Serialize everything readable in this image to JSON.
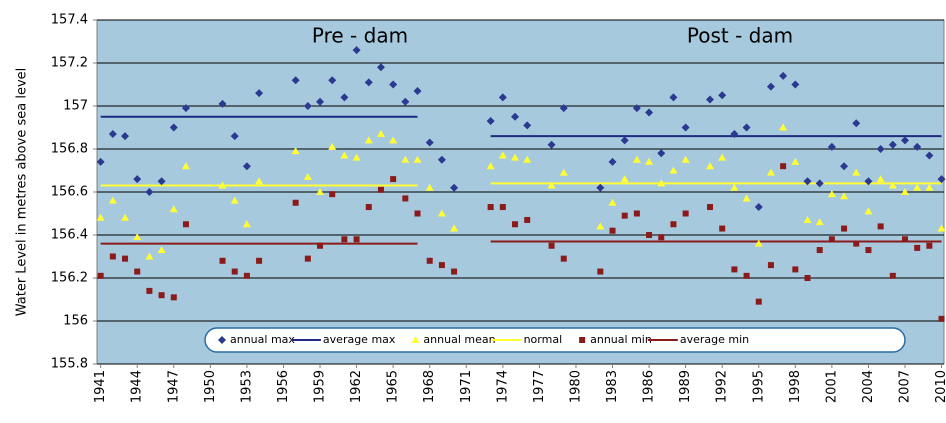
{
  "chart_data": {
    "type": "scatter",
    "y_label": "Water Level in metres above sea level",
    "annotations": [
      "Pre - dam",
      "Post - dam"
    ],
    "xlim": [
      1940.7,
      2010.2
    ],
    "xticks": [
      1941,
      1944,
      1947,
      1950,
      1953,
      1956,
      1959,
      1962,
      1965,
      1968,
      1971,
      1974,
      1977,
      1980,
      1983,
      1986,
      1989,
      1992,
      1995,
      1998,
      2001,
      2004,
      2007,
      2010
    ],
    "ylim": [
      155.8,
      157.4
    ],
    "yticks": [
      155.8,
      156,
      156.2,
      156.4,
      156.6,
      156.8,
      157,
      157.2,
      157.4
    ],
    "grid": true,
    "x": [
      1941,
      1942,
      1943,
      1944,
      1945,
      1946,
      1947,
      1948,
      1951,
      1952,
      1953,
      1954,
      1957,
      1958,
      1959,
      1960,
      1961,
      1962,
      1963,
      1964,
      1965,
      1966,
      1967,
      1968,
      1969,
      1970,
      1973,
      1974,
      1975,
      1976,
      1978,
      1979,
      1982,
      1983,
      1984,
      1985,
      1986,
      1987,
      1988,
      1989,
      1991,
      1992,
      1993,
      1994,
      1995,
      1996,
      1997,
      1998,
      1999,
      2000,
      2001,
      2002,
      2003,
      2004,
      2005,
      2006,
      2007,
      2008,
      2009,
      2010
    ],
    "series": [
      {
        "name": "annual max",
        "color": "#2b3990",
        "marker": "diamond",
        "values": [
          156.74,
          156.87,
          156.86,
          156.66,
          156.6,
          156.65,
          156.9,
          156.99,
          157.01,
          156.86,
          156.72,
          157.06,
          157.12,
          157.0,
          157.02,
          157.12,
          157.04,
          157.26,
          157.11,
          157.18,
          157.1,
          157.02,
          157.07,
          156.83,
          156.75,
          156.62,
          156.93,
          157.04,
          156.95,
          156.91,
          156.82,
          156.99,
          156.62,
          156.74,
          156.84,
          156.99,
          156.97,
          156.78,
          157.04,
          156.9,
          157.03,
          157.05,
          156.87,
          156.9,
          156.53,
          157.09,
          157.14,
          157.1,
          156.65,
          156.64,
          156.81,
          156.72,
          156.92,
          156.65,
          156.8,
          156.82,
          156.84,
          156.81,
          156.77,
          156.66
        ]
      },
      {
        "name": "average max",
        "color": "#1f2a80",
        "segments": [
          {
            "x": [
              1941,
              1967
            ],
            "value": 156.95
          },
          {
            "x": [
              1973,
              2010
            ],
            "value": 156.86
          }
        ]
      },
      {
        "name": "annual mean",
        "color": "#ffff33",
        "marker": "triangle",
        "values": [
          156.48,
          156.56,
          156.48,
          156.39,
          156.3,
          156.33,
          156.52,
          156.72,
          156.63,
          156.56,
          156.45,
          156.65,
          156.79,
          156.67,
          156.6,
          156.81,
          156.77,
          156.76,
          156.84,
          156.87,
          156.84,
          156.75,
          156.75,
          156.62,
          156.5,
          156.43,
          156.72,
          156.77,
          156.76,
          156.75,
          156.63,
          156.69,
          156.44,
          156.55,
          156.66,
          156.75,
          156.74,
          156.64,
          156.7,
          156.75,
          156.72,
          156.76,
          156.62,
          156.57,
          156.36,
          156.69,
          156.9,
          156.74,
          156.47,
          156.46,
          156.59,
          156.58,
          156.69,
          156.51,
          156.66,
          156.63,
          156.6,
          156.62,
          156.62,
          156.43
        ]
      },
      {
        "name": "normal",
        "color": "#ffff33",
        "segments": [
          {
            "x": [
              1941,
              1967
            ],
            "value": 156.63
          },
          {
            "x": [
              1973,
              2010
            ],
            "value": 156.64
          }
        ]
      },
      {
        "name": "annual min",
        "color": "#8b1a1a",
        "marker": "square",
        "values": [
          156.21,
          156.3,
          156.29,
          156.23,
          156.14,
          156.12,
          156.11,
          156.45,
          156.28,
          156.23,
          156.21,
          156.28,
          156.55,
          156.29,
          156.35,
          156.59,
          156.38,
          156.38,
          156.53,
          156.61,
          156.66,
          156.57,
          156.5,
          156.28,
          156.26,
          156.23,
          156.53,
          156.53,
          156.45,
          156.47,
          156.35,
          156.29,
          156.23,
          156.42,
          156.49,
          156.5,
          156.4,
          156.39,
          156.45,
          156.5,
          156.53,
          156.43,
          156.24,
          156.21,
          156.09,
          156.26,
          156.72,
          156.24,
          156.2,
          156.33,
          156.38,
          156.43,
          156.36,
          156.33,
          156.44,
          156.21,
          156.38,
          156.34,
          156.35,
          156.01
        ]
      },
      {
        "name": "average min",
        "color": "#8b1a1a",
        "segments": [
          {
            "x": [
              1941,
              1967
            ],
            "value": 156.36
          },
          {
            "x": [
              1973,
              2010
            ],
            "value": 156.37
          }
        ]
      }
    ]
  }
}
